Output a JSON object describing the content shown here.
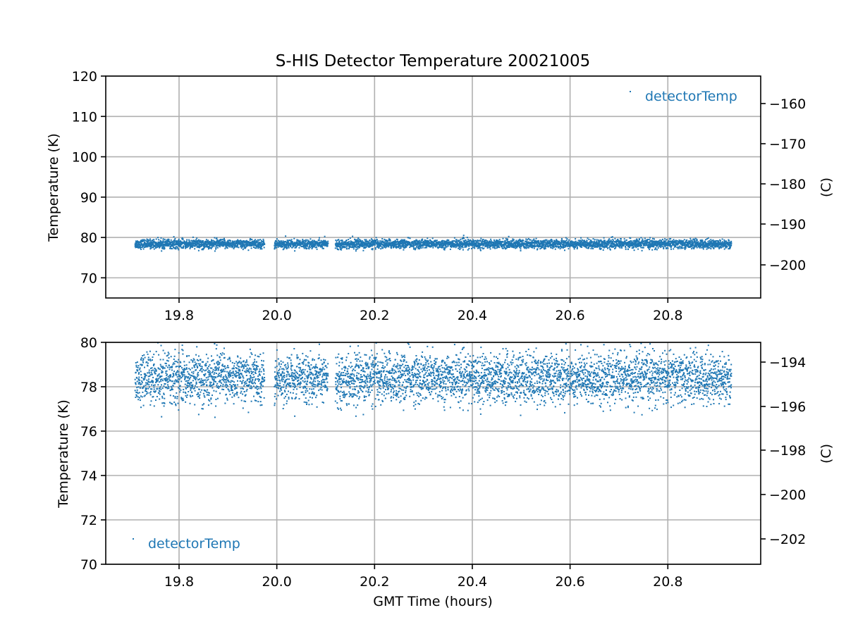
{
  "chart_data": [
    {
      "type": "scatter",
      "title": "S-HIS Detector Temperature 20021005",
      "xlabel": "",
      "ylabel": "Temperature (K)",
      "ylabel_right": "(C)",
      "xlim": [
        19.65,
        20.99
      ],
      "ylim": [
        65,
        120
      ],
      "x_ticks": [
        "19.8",
        "20.0",
        "20.2",
        "20.4",
        "20.6",
        "20.8"
      ],
      "y_ticks": [
        "70",
        "80",
        "90",
        "100",
        "110",
        "120"
      ],
      "y_right_ticks": [
        "−160",
        "−170",
        "−180",
        "−190",
        "−200"
      ],
      "grid": true,
      "legend": "top-right",
      "color": "#1f77b4",
      "series": [
        {
          "name": "detectorTemp",
          "x_range": [
            19.71,
            20.93
          ],
          "gaps": [
            [
              19.975,
              19.995
            ],
            [
              20.105,
              20.12
            ]
          ],
          "mean": 78.4,
          "spread": 0.55,
          "min": 76.5,
          "max": 80.6
        }
      ]
    },
    {
      "type": "scatter",
      "title": "",
      "xlabel": "GMT Time (hours)",
      "ylabel": "Temperature (K)",
      "ylabel_right": "(C)",
      "xlim": [
        19.65,
        20.99
      ],
      "ylim": [
        70,
        80
      ],
      "x_ticks": [
        "19.8",
        "20.0",
        "20.2",
        "20.4",
        "20.6",
        "20.8"
      ],
      "y_ticks": [
        "70",
        "72",
        "74",
        "76",
        "78",
        "80"
      ],
      "y_right_ticks": [
        "−194",
        "−196",
        "−198",
        "−200",
        "−202"
      ],
      "grid": true,
      "legend": "lower-left",
      "color": "#1f77b4",
      "series": [
        {
          "name": "detectorTemp",
          "x_range": [
            19.71,
            20.93
          ],
          "gaps": [
            [
              19.975,
              19.995
            ],
            [
              20.105,
              20.12
            ]
          ],
          "mean": 78.4,
          "spread": 0.55,
          "min": 76.5,
          "max": 80.6
        }
      ]
    }
  ]
}
